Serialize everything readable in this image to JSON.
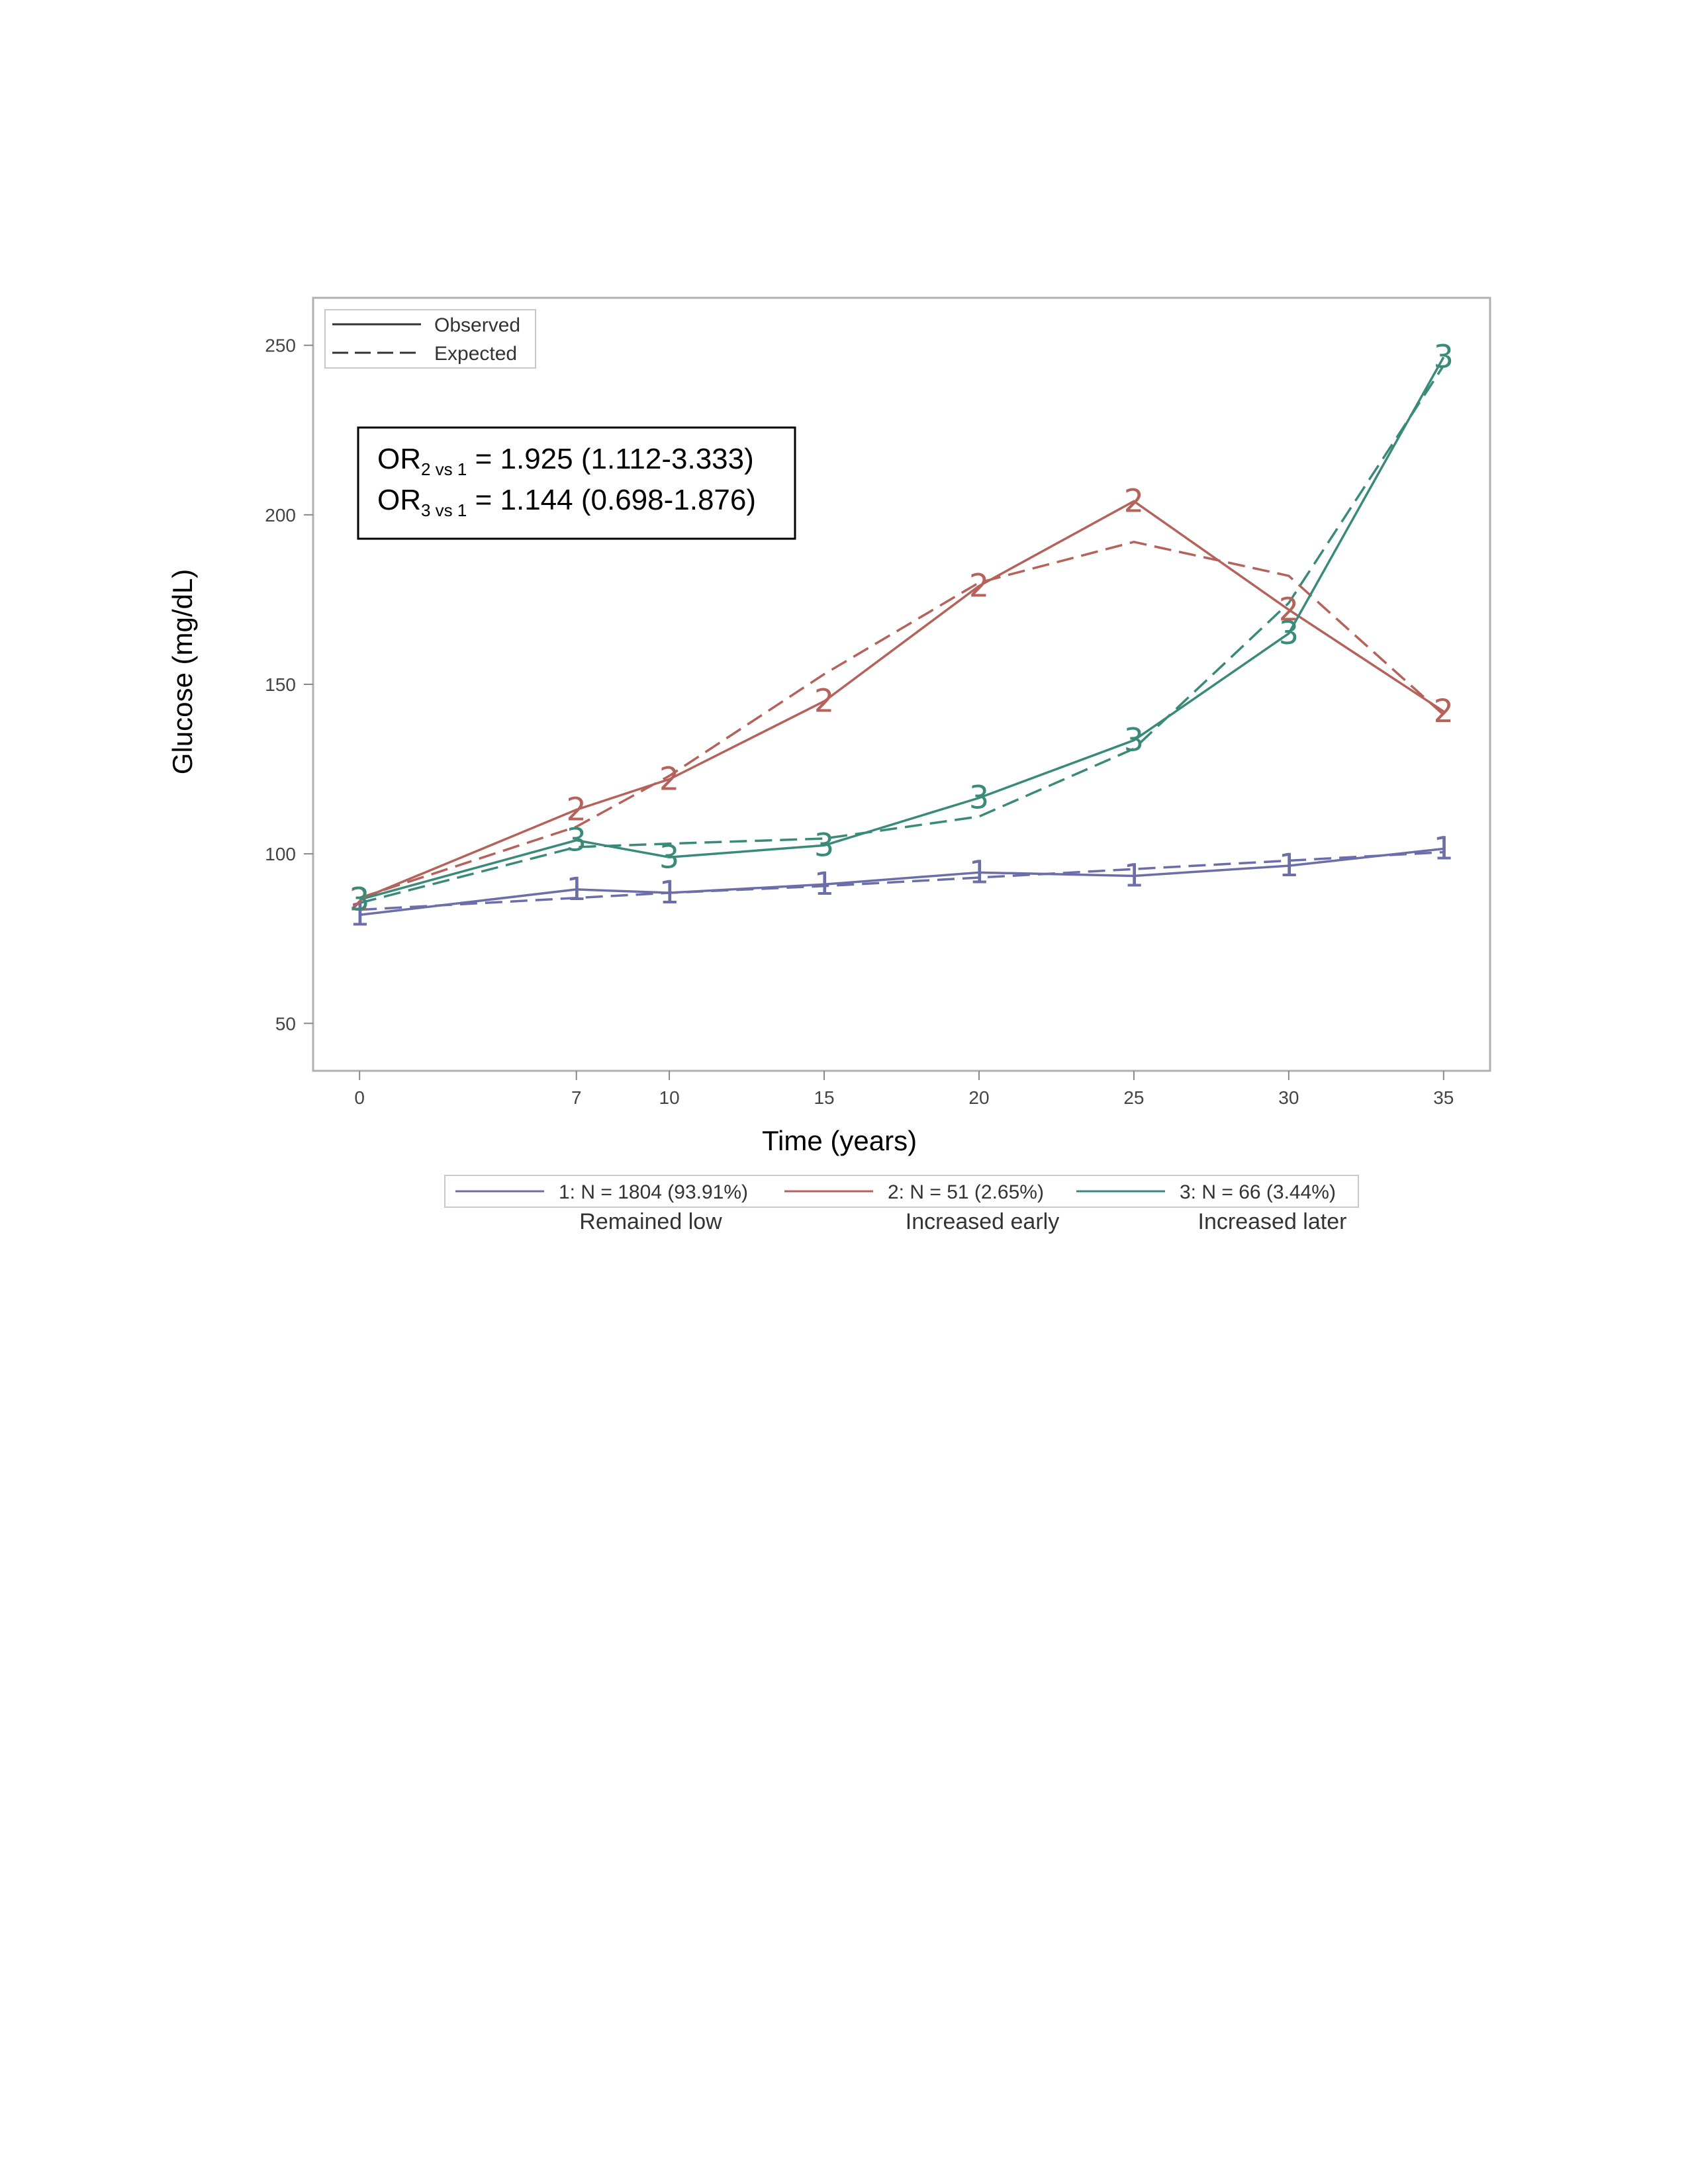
{
  "chart_data": {
    "type": "line",
    "ylabel": "Glucose (mg/dL)",
    "xlabel": "Time (years)",
    "x": [
      0,
      7,
      10,
      15,
      20,
      25,
      30,
      35
    ],
    "xlim": [
      -1.5,
      36.5
    ],
    "ylim": [
      36,
      264
    ],
    "yticks": [
      50,
      100,
      150,
      200,
      250
    ],
    "style_legend": {
      "observed": "Observed",
      "expected": "Expected"
    },
    "annotation": {
      "line1": {
        "pre": "OR",
        "sub": "2 vs 1",
        "post": " = 1.925 (1.112-3.333)"
      },
      "line2": {
        "pre": "OR",
        "sub": "3 vs 1",
        "post": " = 1.144 (0.698-1.876)"
      }
    },
    "series": [
      {
        "name": "1: N = 1804 (93.91%)",
        "description": "Remained low",
        "marker": "1",
        "color": "#6b6ea8",
        "observed": [
          82,
          89.5,
          88.5,
          91,
          94.5,
          93.5,
          96.5,
          101.5
        ],
        "expected": [
          83.5,
          87,
          88.5,
          90.5,
          93,
          95.5,
          98,
          100.5
        ]
      },
      {
        "name": "2: N = 51 (2.65%)",
        "description": "Increased early",
        "marker": "2",
        "color": "#b5625b",
        "observed": [
          86.5,
          113,
          122,
          145,
          179,
          204,
          172,
          142
        ],
        "expected": [
          87,
          108,
          123,
          153,
          180,
          192,
          182,
          141
        ]
      },
      {
        "name": "3: N = 66 (3.44%)",
        "description": "Increased later",
        "marker": "3",
        "color": "#3a8a7a",
        "observed": [
          86.5,
          104,
          99,
          102.5,
          116.5,
          133.5,
          165,
          246.5
        ],
        "expected": [
          85.5,
          102,
          103,
          104.5,
          111,
          131,
          174,
          244
        ]
      }
    ]
  }
}
